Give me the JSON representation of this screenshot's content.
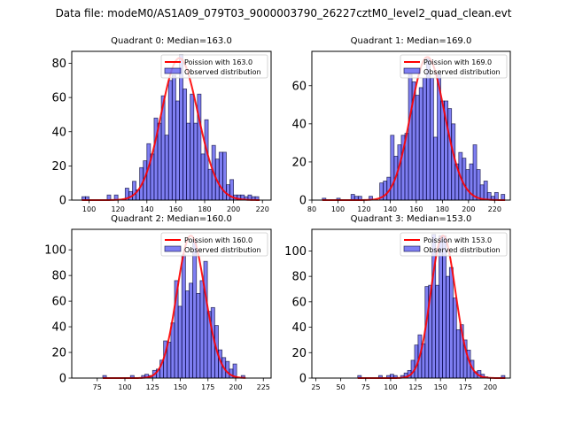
{
  "suptitle": "Data file: modeM0/AS1A09_079T03_9000003790_26227cztM0_level2_quad_clean.evt",
  "chart_data": [
    {
      "type": "bar",
      "title": "Quadrant 0: Median=163.0",
      "legend": [
        "Poission with 163.0",
        "Observed distribution"
      ],
      "legend_position": "top-right",
      "median": 163.0,
      "xlim": [
        88,
        226
      ],
      "ylim": [
        0,
        87
      ],
      "xticks": [
        100,
        120,
        140,
        160,
        180,
        200,
        220
      ],
      "yticks": [
        0,
        20,
        40,
        60,
        80
      ],
      "bin_width": 2.5,
      "bins": [
        95,
        97.5,
        112.5,
        117.5,
        125,
        127.5,
        130,
        132.5,
        135,
        137.5,
        140,
        142.5,
        145,
        147.5,
        150,
        152.5,
        155,
        157.5,
        160,
        162.5,
        165,
        167.5,
        170,
        172.5,
        175,
        177.5,
        180,
        182.5,
        185,
        187.5,
        190,
        192.5,
        195,
        197.5,
        200,
        202.5,
        205,
        207.5,
        210,
        212.5,
        215
      ],
      "counts": [
        2,
        2,
        3,
        3,
        7,
        5,
        11,
        6,
        19,
        23,
        33,
        27,
        48,
        45,
        61,
        38,
        70,
        73,
        58,
        85,
        65,
        45,
        62,
        45,
        62,
        27,
        47,
        18,
        32,
        24,
        28,
        28,
        9,
        12,
        3,
        3,
        3,
        2,
        3,
        2,
        2
      ],
      "poisson_mean": 163.0,
      "poisson_peak": 83
    },
    {
      "type": "bar",
      "title": "Quadrant 1: Median=169.0",
      "legend": [
        "Poission with 169.0",
        "Observed distribution"
      ],
      "legend_position": "top-right",
      "median": 169.0,
      "xlim": [
        80,
        232
      ],
      "ylim": [
        0,
        78
      ],
      "xticks": [
        80,
        100,
        120,
        140,
        160,
        180,
        200,
        220
      ],
      "yticks": [
        0,
        20,
        40,
        60
      ],
      "bin_width": 2.75,
      "bins": [
        88,
        99,
        110,
        112.75,
        115.5,
        123.75,
        132,
        134.75,
        137.5,
        140.25,
        143,
        145.75,
        148.5,
        151.25,
        154,
        156.75,
        159.5,
        162.25,
        165,
        167.75,
        170.5,
        173.25,
        176,
        178.75,
        181.5,
        184.25,
        187,
        189.75,
        192.5,
        195.25,
        198,
        200.75,
        203.5,
        206.25,
        209,
        211.75,
        214.5,
        217.25,
        220,
        225
      ],
      "counts": [
        1,
        1,
        3,
        2,
        2,
        2,
        9,
        10,
        12,
        34,
        23,
        29,
        34,
        35,
        66,
        62,
        55,
        59,
        64,
        74,
        64,
        33,
        66,
        52,
        52,
        48,
        40,
        19,
        25,
        22,
        16,
        19,
        29,
        16,
        8,
        10,
        4,
        2,
        4,
        3
      ],
      "poisson_mean": 169.0,
      "poisson_peak": 75
    },
    {
      "type": "bar",
      "title": "Quadrant 2: Median=160.0",
      "legend": [
        "Poission with 160.0",
        "Observed distribution"
      ],
      "legend_position": "top-right",
      "median": 160.0,
      "xlim": [
        52,
        232
      ],
      "ylim": [
        0,
        116
      ],
      "xticks": [
        75,
        100,
        125,
        150,
        175,
        200,
        225
      ],
      "yticks": [
        0,
        20,
        40,
        60,
        80,
        100
      ],
      "bin_width": 3.3,
      "bins": [
        80,
        105,
        115,
        118,
        121.5,
        125,
        128.3,
        131.6,
        134.9,
        138.2,
        141.5,
        144.8,
        148.1,
        151.4,
        154.7,
        158,
        161.3,
        164.6,
        167.9,
        171.2,
        174.5,
        177.8,
        181.1,
        184.4,
        187.7,
        191,
        194.3,
        197.6,
        205
      ],
      "counts": [
        2,
        2,
        2,
        3,
        2,
        6,
        7,
        14,
        29,
        28,
        43,
        76,
        56,
        96,
        68,
        74,
        108,
        66,
        76,
        91,
        52,
        55,
        41,
        22,
        16,
        13,
        7,
        11,
        2
      ],
      "poisson_mean": 160.0,
      "poisson_peak": 111
    },
    {
      "type": "bar",
      "title": "Quadrant 3: Median=153.0",
      "legend": [
        "Poission with 153.0",
        "Observed distribution"
      ],
      "legend_position": "top-right",
      "median": 153.0,
      "xlim": [
        21,
        220
      ],
      "ylim": [
        0,
        117
      ],
      "xticks": [
        25,
        50,
        75,
        100,
        125,
        150,
        175,
        200
      ],
      "yticks": [
        0,
        20,
        40,
        60,
        80,
        100
      ],
      "bin_width": 3.6,
      "bins": [
        67,
        88,
        96,
        99.5,
        103,
        110,
        113.5,
        117,
        120.5,
        124,
        127.5,
        131,
        134.5,
        138,
        141.5,
        145,
        148.5,
        152,
        155.5,
        159,
        162.5,
        166,
        169.5,
        173,
        176.5,
        180,
        183.5,
        187,
        190.5,
        194,
        211
      ],
      "counts": [
        2,
        2,
        2,
        3,
        2,
        2,
        4,
        6,
        14,
        26,
        34,
        27,
        72,
        73,
        113,
        73,
        112,
        112,
        80,
        87,
        63,
        38,
        42,
        30,
        22,
        14,
        5,
        6,
        3,
        1,
        2
      ],
      "poisson_mean": 153.0,
      "poisson_peak": 112
    }
  ]
}
